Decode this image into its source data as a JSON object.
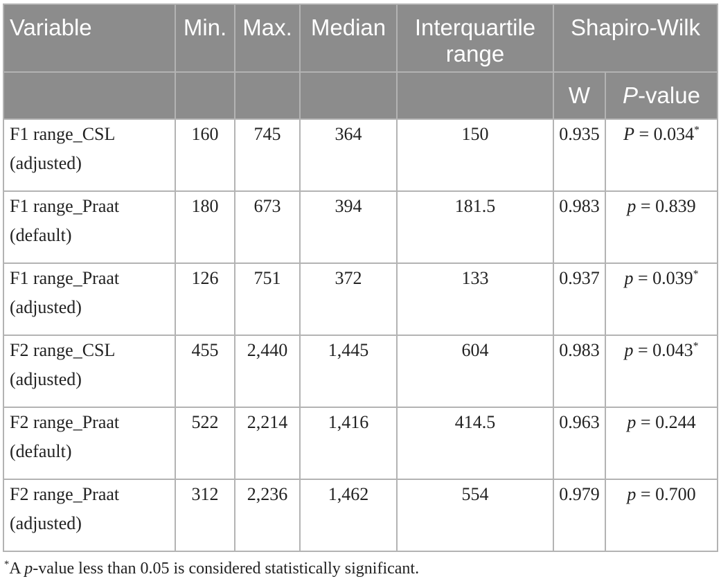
{
  "header": {
    "variable": "Variable",
    "min": "Min.",
    "max": "Max.",
    "median": "Median",
    "iqr": "Interquartile range",
    "shapiro": "Shapiro-Wilk",
    "w": "W",
    "p_italic": "P",
    "p_suffix": "-value"
  },
  "rows": [
    {
      "var1": "F1 range_CSL",
      "var2": "(adjusted)",
      "min": "160",
      "max": "745",
      "median": "364",
      "iqr": "150",
      "w": "0.935",
      "p_sym": "P",
      "p_val": " = 0.034",
      "p_mark": "*"
    },
    {
      "var1": "F1 range_Praat",
      "var2": "(default)",
      "min": "180",
      "max": "673",
      "median": "394",
      "iqr": "181.5",
      "w": "0.983",
      "p_sym": "p",
      "p_val": " = 0.839",
      "p_mark": ""
    },
    {
      "var1": "F1 range_Praat",
      "var2": "(adjusted)",
      "min": "126",
      "max": "751",
      "median": "372",
      "iqr": "133",
      "w": "0.937",
      "p_sym": "p",
      "p_val": " = 0.039",
      "p_mark": "*"
    },
    {
      "var1": "F2 range_CSL",
      "var2": "(adjusted)",
      "min": "455",
      "max": "2,440",
      "median": "1,445",
      "iqr": "604",
      "w": "0.983",
      "p_sym": "p",
      "p_val": " = 0.043",
      "p_mark": "*"
    },
    {
      "var1": "F2 range_Praat",
      "var2": "(default)",
      "min": "522",
      "max": "2,214",
      "median": "1,416",
      "iqr": "414.5",
      "w": "0.963",
      "p_sym": "p",
      "p_val": " = 0.244",
      "p_mark": ""
    },
    {
      "var1": "F2 range_Praat",
      "var2": "(adjusted)",
      "min": "312",
      "max": "2,236",
      "median": "1,462",
      "iqr": "554",
      "w": "0.979",
      "p_sym": "p",
      "p_val": " = 0.700",
      "p_mark": ""
    }
  ],
  "footnote": {
    "mark": "*",
    "pre": "A ",
    "p": "p",
    "post": "-value less than 0.05 is considered statistically significant."
  }
}
